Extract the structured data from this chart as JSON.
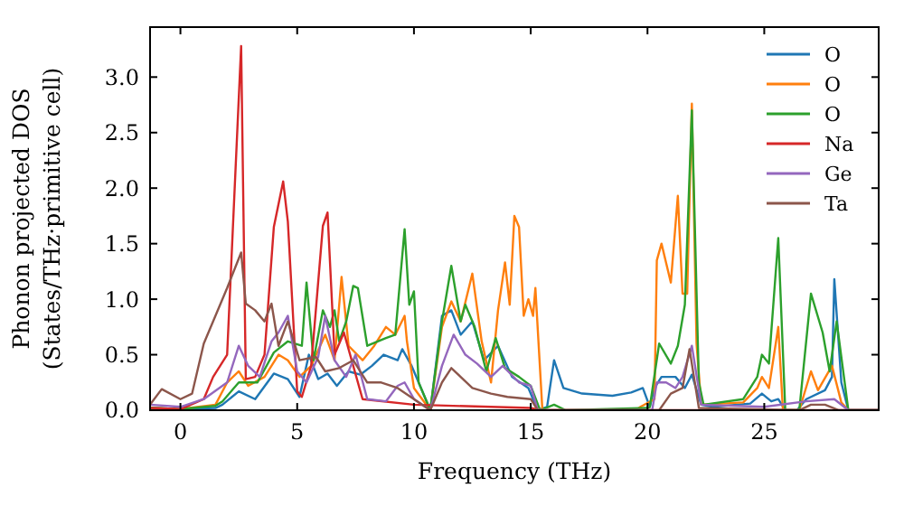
{
  "chart_data": {
    "type": "line",
    "xlabel": "Frequency (THz)",
    "ylabel": "Phonon projected DOS\n(States/THz·primitive cell)",
    "xlim": [
      -1.3,
      29.9
    ],
    "ylim": [
      0,
      3.45
    ],
    "xticks": [
      0,
      5,
      10,
      15,
      20,
      25
    ],
    "yticks": [
      {
        "value": 0,
        "label": "0.0"
      },
      {
        "value": 0.5,
        "label": "0.5"
      },
      {
        "value": 1,
        "label": "1.0"
      },
      {
        "value": 1.5,
        "label": "1.5"
      },
      {
        "value": 2,
        "label": "2.0"
      },
      {
        "value": 2.5,
        "label": "2.5"
      },
      {
        "value": 3,
        "label": "3.0"
      }
    ],
    "legend": "top right",
    "grid": false,
    "marker": "none",
    "line_style": "solid",
    "series": [
      {
        "name": "O",
        "color": "#1f77b4",
        "x": [
          -1.3,
          0,
          1.5,
          1.8,
          2.5,
          3.2,
          4.0,
          4.6,
          5.1,
          5.5,
          5.9,
          6.3,
          6.7,
          7.2,
          7.7,
          8.2,
          8.7,
          9.3,
          9.5,
          9.9,
          10.0,
          10.7,
          11.2,
          11.6,
          12.0,
          12.5,
          13.0,
          13.6,
          14.2,
          14.9,
          15.3,
          15.7,
          16.0,
          16.4,
          17.2,
          18.5,
          19.3,
          19.8,
          20.1,
          20.3,
          20.6,
          21.2,
          21.6,
          21.9,
          22.3,
          22.8,
          24.4,
          24.9,
          25.3,
          25.6,
          25.9,
          26.4,
          26.8,
          27.6,
          27.9,
          28.0,
          28.3,
          28.6,
          29.9
        ],
        "values": [
          0.02,
          0.01,
          0.02,
          0.05,
          0.17,
          0.1,
          0.33,
          0.28,
          0.12,
          0.5,
          0.28,
          0.33,
          0.22,
          0.35,
          0.32,
          0.4,
          0.5,
          0.45,
          0.55,
          0.4,
          0.35,
          0,
          0.85,
          0.9,
          0.68,
          0.8,
          0.45,
          0.58,
          0.3,
          0.2,
          0,
          0.03,
          0.45,
          0.2,
          0.15,
          0.13,
          0.16,
          0.2,
          0.03,
          0.2,
          0.3,
          0.3,
          0.2,
          0.32,
          0.05,
          0.03,
          0.06,
          0.15,
          0.08,
          0.1,
          0,
          0,
          0.1,
          0.18,
          0.3,
          1.18,
          0.25,
          0,
          0
        ]
      },
      {
        "name": "O",
        "color": "#ff7f0e",
        "x": [
          -1.3,
          0,
          1.5,
          2.0,
          2.5,
          2.9,
          3.6,
          4.2,
          4.6,
          5.1,
          5.6,
          6.2,
          6.6,
          6.9,
          7.2,
          7.8,
          8.3,
          8.8,
          9.2,
          9.6,
          9.7,
          10.0,
          10.7,
          11.2,
          11.6,
          12.0,
          12.5,
          12.9,
          13.3,
          13.6,
          13.9,
          14.1,
          14.3,
          14.5,
          14.7,
          14.9,
          15.1,
          15.2,
          15.5,
          19.5,
          19.7,
          20.3,
          20.4,
          20.6,
          21.0,
          21.3,
          21.5,
          21.7,
          21.9,
          22.1,
          22.3,
          24.1,
          24.7,
          24.9,
          25.2,
          25.6,
          25.8,
          26.5,
          27.0,
          27.3,
          27.9,
          28.3,
          28.6,
          29.9
        ],
        "values": [
          0.02,
          0.01,
          0.05,
          0.25,
          0.35,
          0.22,
          0.3,
          0.5,
          0.45,
          0.3,
          0.4,
          0.68,
          0.45,
          1.2,
          0.58,
          0.45,
          0.58,
          0.75,
          0.68,
          0.85,
          0.62,
          0.2,
          0,
          0.75,
          0.98,
          0.8,
          1.23,
          0.62,
          0.25,
          0.9,
          1.33,
          0.95,
          1.75,
          1.65,
          0.85,
          1.0,
          0.85,
          1.1,
          0,
          0,
          0.03,
          0.1,
          1.35,
          1.5,
          1.15,
          1.93,
          1.05,
          1.05,
          2.76,
          0.6,
          0.05,
          0.07,
          0.2,
          0.3,
          0.2,
          0.75,
          0,
          0,
          0.35,
          0.18,
          0.4,
          0.07,
          0,
          0
        ]
      },
      {
        "name": "O",
        "color": "#2ca02c",
        "x": [
          -1.3,
          0,
          1.5,
          1.8,
          2.5,
          3.3,
          4.0,
          4.6,
          5.2,
          5.4,
          5.7,
          6.1,
          6.4,
          6.6,
          6.8,
          7.1,
          7.4,
          7.6,
          8.0,
          8.8,
          9.2,
          9.6,
          9.8,
          10.0,
          10.2,
          10.7,
          11.2,
          11.6,
          12.0,
          12.2,
          12.6,
          13.1,
          13.5,
          13.9,
          14.5,
          15.0,
          15.4,
          16.0,
          16.5,
          20.0,
          20.1,
          20.5,
          21.0,
          21.3,
          21.6,
          21.9,
          22.2,
          22.4,
          24.1,
          24.7,
          24.9,
          25.2,
          25.6,
          25.9,
          26.5,
          27.0,
          27.5,
          27.8,
          28.1,
          28.6,
          29.9
        ],
        "values": [
          0.02,
          0.01,
          0.04,
          0.08,
          0.25,
          0.25,
          0.52,
          0.62,
          0.58,
          1.15,
          0.45,
          0.9,
          0.75,
          0.9,
          0.62,
          0.8,
          1.12,
          1.1,
          0.58,
          0.65,
          0.68,
          1.63,
          0.95,
          1.07,
          0.25,
          0,
          0.8,
          1.3,
          0.8,
          0.95,
          0.75,
          0.35,
          0.65,
          0.38,
          0.3,
          0.22,
          0,
          0.05,
          0,
          0.02,
          0.03,
          0.6,
          0.42,
          0.58,
          0.95,
          2.7,
          0.25,
          0.05,
          0.1,
          0.3,
          0.5,
          0.42,
          1.55,
          0,
          0,
          1.05,
          0.7,
          0.35,
          0.8,
          0,
          0
        ]
      },
      {
        "name": "Na",
        "color": "#d62728",
        "x": [
          -1.3,
          0,
          1.0,
          1.4,
          2.0,
          2.6,
          2.8,
          3.2,
          3.6,
          4.0,
          4.4,
          4.6,
          5.0,
          5.2,
          5.6,
          6.1,
          6.3,
          6.6,
          7.0,
          7.4,
          7.8,
          10.0,
          15.0,
          15.4,
          29.9
        ],
        "values": [
          0.02,
          0.01,
          0.1,
          0.3,
          0.5,
          3.28,
          0.28,
          0.3,
          0.5,
          1.65,
          2.06,
          1.7,
          0.17,
          0.12,
          0.4,
          1.66,
          1.78,
          0.5,
          0.7,
          0.4,
          0.1,
          0.05,
          0.02,
          0,
          0
        ]
      },
      {
        "name": "Ge",
        "color": "#9467bd",
        "x": [
          -1.3,
          0,
          1.0,
          2.0,
          2.5,
          2.9,
          3.4,
          3.9,
          4.2,
          4.6,
          5.0,
          5.4,
          5.9,
          6.2,
          6.6,
          7.1,
          7.5,
          8.0,
          8.8,
          9.3,
          9.6,
          10.0,
          10.7,
          11.2,
          11.7,
          12.2,
          12.7,
          13.3,
          13.8,
          14.5,
          15.0,
          15.3,
          20.2,
          20.4,
          20.8,
          21.2,
          21.5,
          21.9,
          22.3,
          25.0,
          26.8,
          28.0,
          28.6,
          29.9
        ],
        "values": [
          0.05,
          0.03,
          0.1,
          0.25,
          0.58,
          0.4,
          0.3,
          0.62,
          0.7,
          0.85,
          0.35,
          0.25,
          0.48,
          0.85,
          0.45,
          0.3,
          0.5,
          0.1,
          0.08,
          0.22,
          0.25,
          0.1,
          0,
          0.4,
          0.68,
          0.5,
          0.42,
          0.3,
          0.4,
          0.25,
          0.22,
          0,
          0,
          0.25,
          0.25,
          0.2,
          0.3,
          0.58,
          0.05,
          0.03,
          0.08,
          0.1,
          0,
          0
        ]
      },
      {
        "name": "Ta",
        "color": "#8c564b",
        "x": [
          -1.3,
          -0.8,
          0,
          0.5,
          1.0,
          1.5,
          2.0,
          2.6,
          2.8,
          3.2,
          3.6,
          3.9,
          4.2,
          4.6,
          5.1,
          5.8,
          6.2,
          6.8,
          7.4,
          8.0,
          8.6,
          9.3,
          10.0,
          10.7,
          11.2,
          11.6,
          12.0,
          12.5,
          13.3,
          14.0,
          15.0,
          15.3,
          20.5,
          21.0,
          21.5,
          21.8,
          22.2,
          26.5,
          27.0,
          27.6,
          28.2,
          29.9
        ],
        "values": [
          0.05,
          0.19,
          0.1,
          0.15,
          0.6,
          0.85,
          1.1,
          1.42,
          0.96,
          0.9,
          0.8,
          0.96,
          0.58,
          0.8,
          0.45,
          0.48,
          0.35,
          0.38,
          0.45,
          0.25,
          0.25,
          0.2,
          0.1,
          0,
          0.25,
          0.38,
          0.3,
          0.2,
          0.15,
          0.12,
          0.1,
          0,
          0,
          0.15,
          0.2,
          0.55,
          0.02,
          0,
          0.05,
          0.05,
          0,
          0
        ]
      }
    ]
  }
}
